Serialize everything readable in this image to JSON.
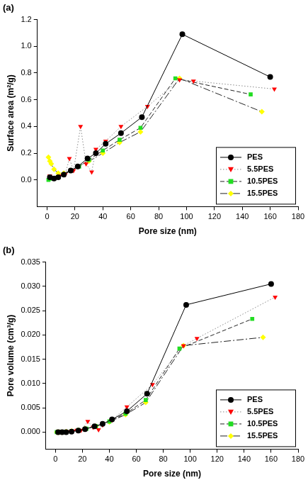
{
  "chart_data": [
    {
      "type": "line",
      "title": "(a)",
      "x_label": "Pore size (nm)",
      "y_label": "Surface area (m²/g)",
      "xlim": [
        -7,
        180
      ],
      "xticks": [
        0,
        20,
        40,
        60,
        80,
        100,
        120,
        140,
        160,
        180
      ],
      "ylim": [
        -0.2,
        1.2
      ],
      "yticks": [
        {
          "value": 0,
          "label": "0.0"
        },
        0.2,
        0.4,
        0.6,
        0.8,
        {
          "value": 1,
          "label": "1.0"
        },
        1.2
      ],
      "grid": false,
      "legend": "lower right",
      "series": [
        {
          "name": "PES",
          "color": "#000000",
          "marker": "circle",
          "line_style": "solid",
          "x": [
            2,
            5,
            8,
            12,
            17,
            22,
            29,
            35,
            42,
            53,
            68,
            97,
            160
          ],
          "values": [
            0.02,
            0.01,
            0.02,
            0.04,
            0.07,
            0.1,
            0.16,
            0.2,
            0.27,
            0.35,
            0.47,
            1.09,
            0.77
          ]
        },
        {
          "name": "5.5PES",
          "color": "#ff0000",
          "marker": "triangle-down",
          "line_style": "dotted",
          "x": [
            2,
            5,
            9,
            13,
            16,
            19,
            24,
            28,
            32,
            35,
            42,
            53,
            72,
            95,
            105,
            163
          ],
          "values": [
            0.03,
            0.02,
            0.03,
            0.04,
            0.16,
            0.07,
            0.4,
            0.12,
            0.06,
            0.23,
            0.29,
            0.4,
            0.55,
            0.75,
            0.74,
            0.68
          ]
        },
        {
          "name": "10.5PES",
          "color": "#22dd22",
          "marker": "square",
          "line_style": "dashed",
          "x": [
            1,
            3,
            5,
            8,
            12,
            17,
            23,
            30,
            40,
            52,
            67,
            92,
            146
          ],
          "values": [
            0.0,
            0.01,
            0.01,
            0.02,
            0.04,
            0.07,
            0.1,
            0.15,
            0.22,
            0.3,
            0.39,
            0.76,
            0.64
          ]
        },
        {
          "name": "15.5PES",
          "color": "#ffff00",
          "marker": "diamond",
          "line_style": "dashdot",
          "x": [
            1,
            2,
            3,
            5,
            8,
            12,
            17,
            22,
            30,
            40,
            52,
            67,
            95,
            154
          ],
          "values": [
            0.17,
            0.14,
            0.12,
            0.08,
            0.05,
            0.05,
            0.07,
            0.1,
            0.14,
            0.2,
            0.28,
            0.36,
            0.76,
            0.51
          ]
        }
      ]
    },
    {
      "type": "line",
      "title": "(b)",
      "x_label": "Pore size (nm)",
      "y_label": "Pore volume (cm³/g)",
      "xlim": [
        -7,
        180
      ],
      "xticks": [
        0,
        20,
        40,
        60,
        80,
        100,
        120,
        140,
        160,
        180
      ],
      "ylim": [
        -0.0035,
        0.035
      ],
      "yticks": [
        {
          "value": 0,
          "label": "0.000"
        },
        {
          "value": 0.005,
          "label": "0.005"
        },
        {
          "value": 0.01,
          "label": "0.010"
        },
        {
          "value": 0.015,
          "label": "0.015"
        },
        {
          "value": 0.02,
          "label": "0.020"
        },
        {
          "value": 0.025,
          "label": "0.025"
        },
        {
          "value": 0.03,
          "label": "0.030"
        },
        {
          "value": 0.035,
          "label": "0.035"
        }
      ],
      "grid": false,
      "legend": "lower right",
      "series": [
        {
          "name": "PES",
          "color": "#000000",
          "marker": "circle",
          "line_style": "solid",
          "x": [
            2,
            5,
            8,
            12,
            17,
            22,
            29,
            35,
            42,
            53,
            68,
            97,
            160
          ],
          "values": [
            0,
            0,
            0,
            0.0001,
            0.0003,
            0.0006,
            0.0012,
            0.0017,
            0.0026,
            0.0043,
            0.0079,
            0.0262,
            0.0305
          ]
        },
        {
          "name": "5.5PES",
          "color": "#ff0000",
          "marker": "triangle-down",
          "line_style": "dotted",
          "x": [
            2,
            5,
            9,
            13,
            16,
            19,
            24,
            28,
            32,
            35,
            42,
            53,
            72,
            95,
            105,
            163
          ],
          "values": [
            0,
            0,
            0.0001,
            0.0002,
            0.0004,
            0.0004,
            0.0022,
            0.001,
            0.0005,
            0.0015,
            0.0025,
            0.0052,
            0.0098,
            0.0178,
            0.0193,
            0.0278
          ]
        },
        {
          "name": "10.5PES",
          "color": "#22dd22",
          "marker": "square",
          "line_style": "dashed",
          "x": [
            1,
            3,
            5,
            8,
            12,
            17,
            23,
            30,
            40,
            52,
            67,
            92,
            146
          ],
          "values": [
            0,
            0,
            0,
            0.0001,
            0.0002,
            0.0004,
            0.0007,
            0.0012,
            0.0022,
            0.0038,
            0.0066,
            0.0172,
            0.0233
          ]
        },
        {
          "name": "15.5PES",
          "color": "#ffff00",
          "marker": "diamond",
          "line_style": "dashdot",
          "x": [
            1,
            2,
            3,
            5,
            8,
            12,
            17,
            22,
            30,
            40,
            52,
            67,
            95,
            154
          ],
          "values": [
            0,
            0,
            0,
            0,
            0.0001,
            0.0002,
            0.0004,
            0.0007,
            0.0012,
            0.0021,
            0.0036,
            0.0061,
            0.0178,
            0.0195
          ]
        }
      ]
    }
  ]
}
